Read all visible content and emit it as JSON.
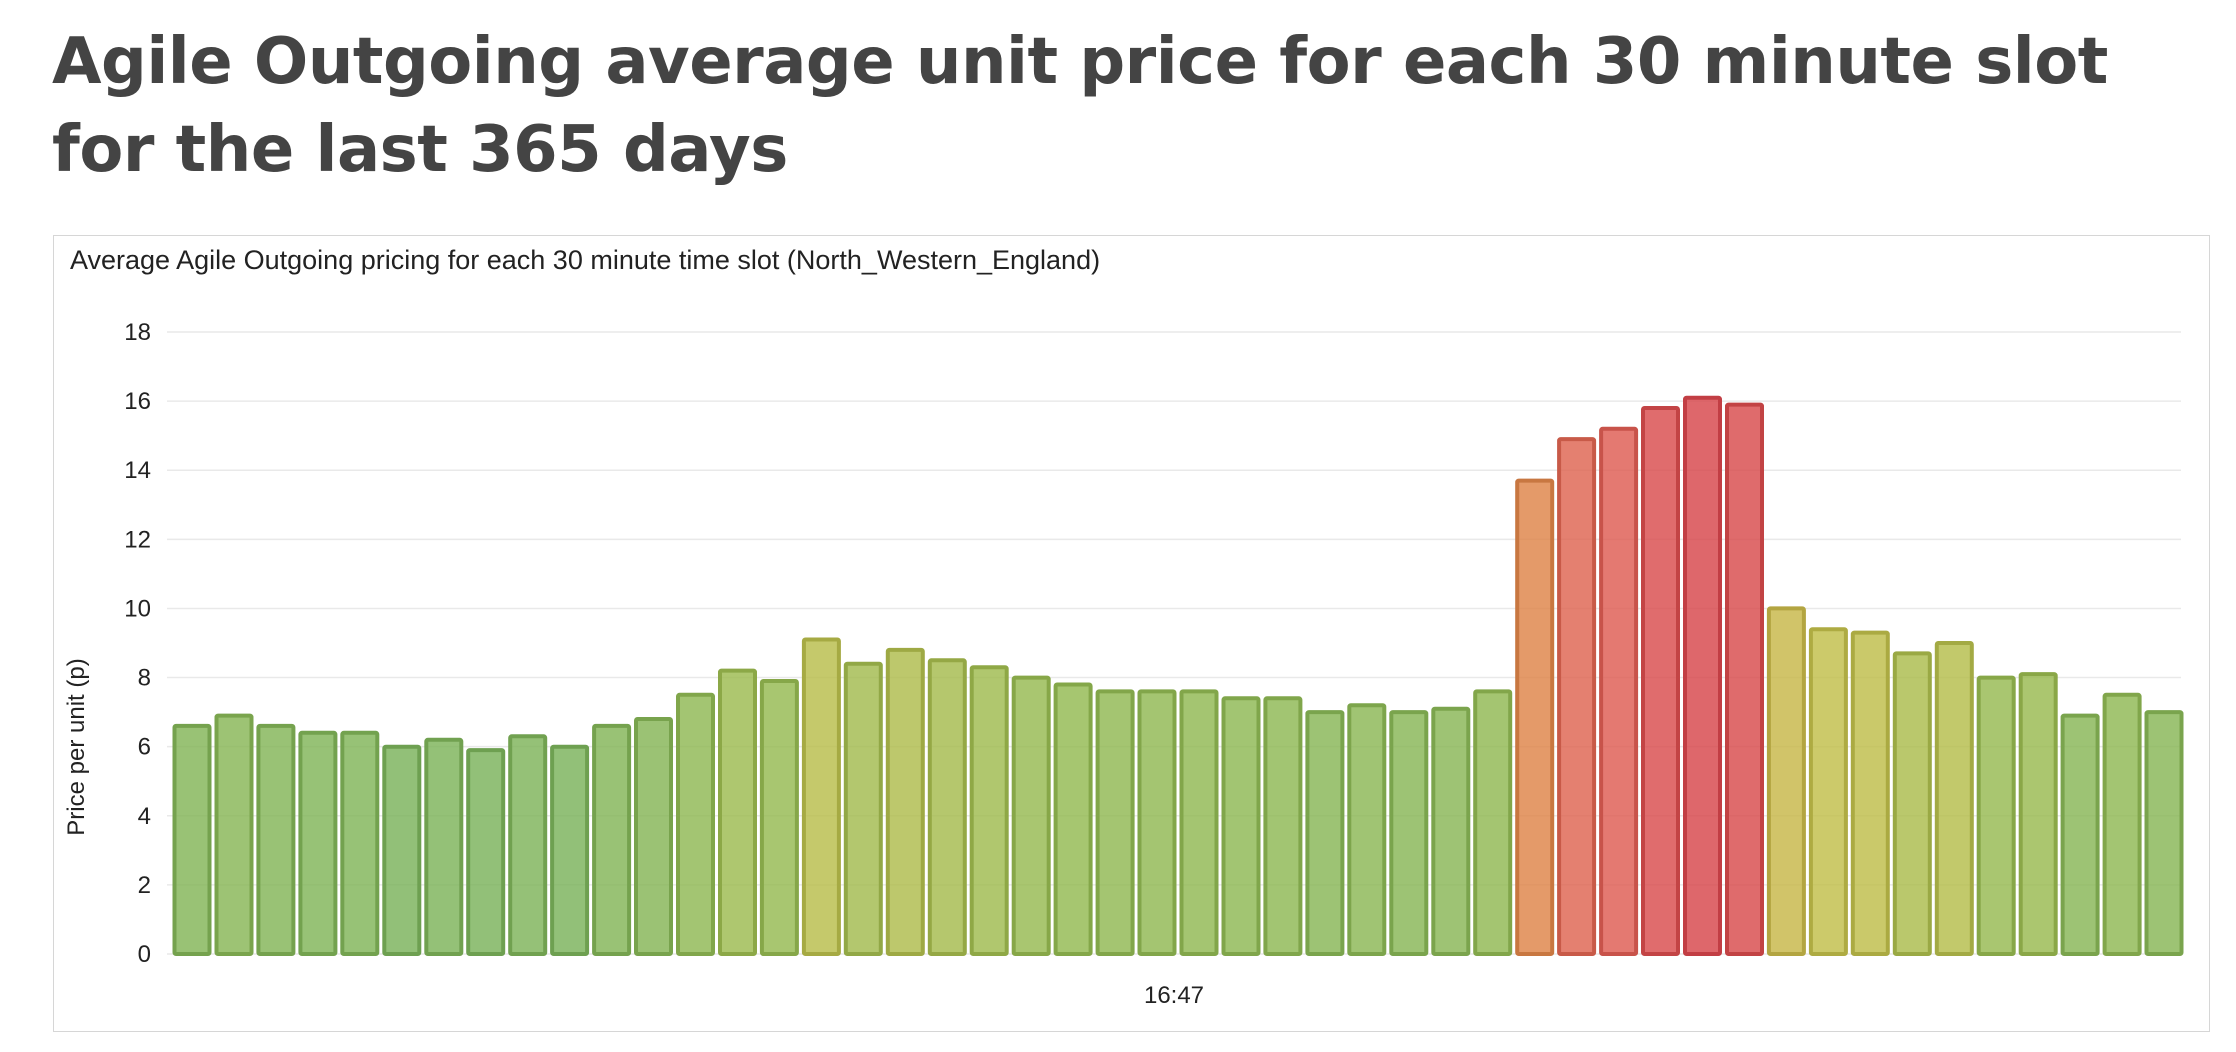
{
  "page": {
    "title": "Agile Outgoing average unit price for each 30 minute slot for the last 365 days"
  },
  "chart_data": {
    "type": "bar",
    "title": "Average Agile Outgoing pricing for each 30 minute time slot (North_Western_England)",
    "xlabel": "16:47",
    "ylabel": "Price per unit (p)",
    "ylim": [
      0,
      18
    ],
    "yticks": [
      0,
      2,
      4,
      6,
      8,
      10,
      12,
      14,
      16,
      18
    ],
    "grid": true,
    "legend": "none",
    "values": [
      6.6,
      6.9,
      6.6,
      6.4,
      6.4,
      6.0,
      6.2,
      5.9,
      6.3,
      6.0,
      6.6,
      6.8,
      7.5,
      8.2,
      7.9,
      9.1,
      8.4,
      8.8,
      8.5,
      8.3,
      8.0,
      7.8,
      7.6,
      7.6,
      7.6,
      7.4,
      7.4,
      7.0,
      7.2,
      7.0,
      7.1,
      7.6,
      13.7,
      14.9,
      15.2,
      15.8,
      16.1,
      15.9,
      10.0,
      9.4,
      9.3,
      8.7,
      9.0,
      8.0,
      8.1,
      6.9,
      7.5,
      7.0
    ]
  }
}
